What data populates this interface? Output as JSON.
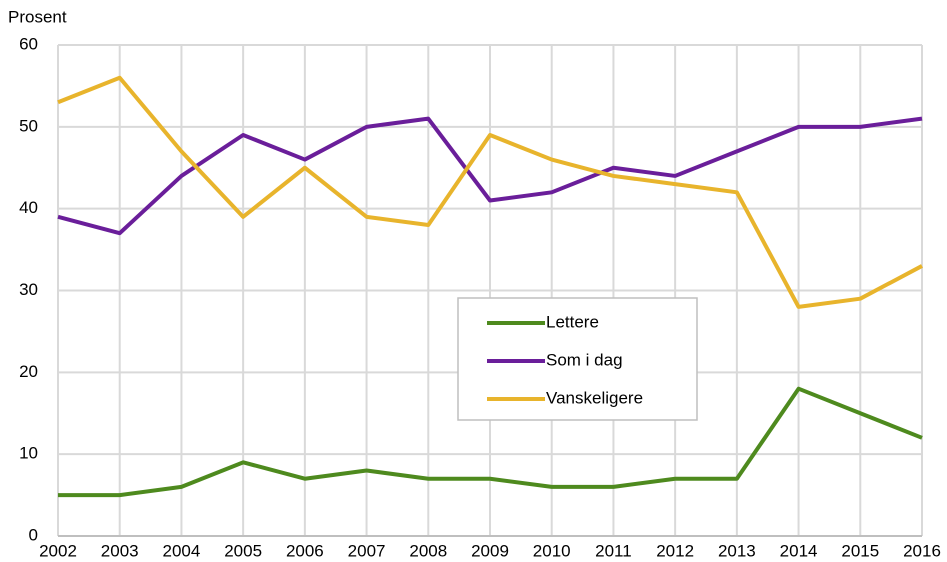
{
  "chart_data": {
    "type": "line",
    "y_label": "Prosent",
    "x": [
      2002,
      2003,
      2004,
      2005,
      2006,
      2007,
      2008,
      2009,
      2010,
      2011,
      2012,
      2013,
      2014,
      2015,
      2016
    ],
    "series": [
      {
        "name": "Lettere",
        "color": "#4e8a1e",
        "values": [
          5,
          5,
          6,
          9,
          7,
          8,
          7,
          7,
          6,
          6,
          7,
          7,
          18,
          15,
          12
        ]
      },
      {
        "name": "Som i dag",
        "color": "#6a1e9a",
        "values": [
          39,
          37,
          44,
          49,
          46,
          50,
          51,
          41,
          42,
          45,
          44,
          47,
          50,
          50,
          51
        ]
      },
      {
        "name": "Vanskeligere",
        "color": "#e8b42c",
        "values": [
          53,
          56,
          47,
          39,
          45,
          39,
          38,
          49,
          46,
          44,
          43,
          42,
          28,
          29,
          33
        ]
      }
    ],
    "xlim": [
      2002,
      2016
    ],
    "xticks": [
      2002,
      2003,
      2004,
      2005,
      2006,
      2007,
      2008,
      2009,
      2010,
      2011,
      2012,
      2013,
      2014,
      2015,
      2016
    ],
    "ylim": [
      0,
      60
    ],
    "yticks": [
      0,
      10,
      20,
      30,
      40,
      50,
      60
    ],
    "grid": true
  }
}
